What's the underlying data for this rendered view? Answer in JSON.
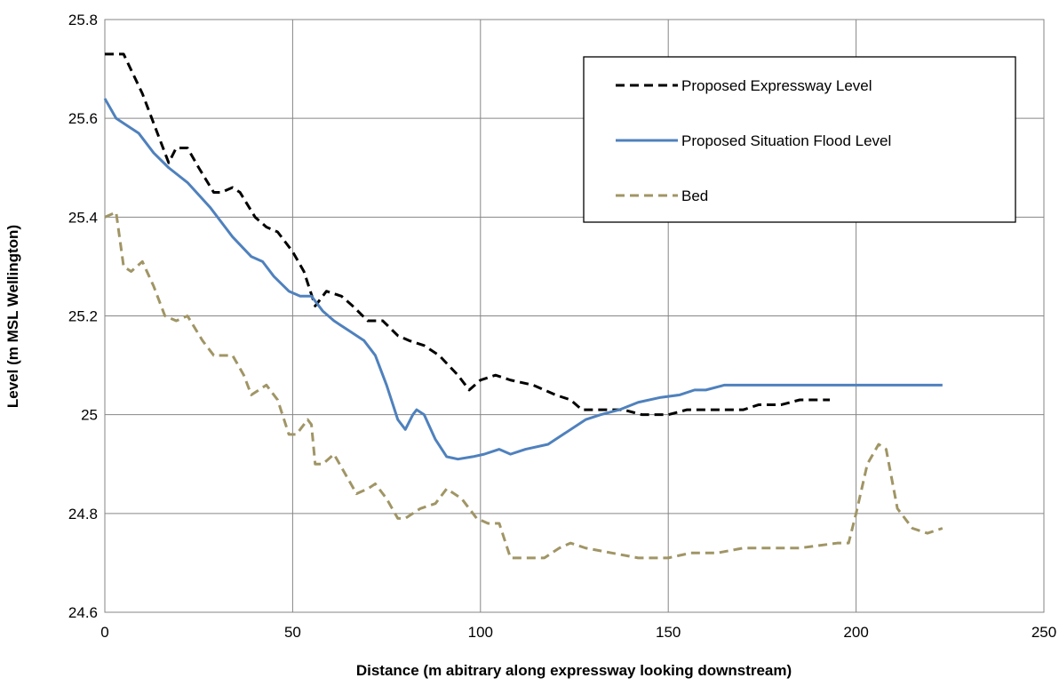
{
  "chart_data": {
    "type": "line",
    "x_label": "Distance (m abitrary along expressway looking downstream)",
    "y_label": "Level (m MSL Wellington)",
    "xlim": [
      0,
      250
    ],
    "xticks": [
      0,
      50,
      100,
      150,
      200,
      250
    ],
    "ylim": [
      24.6,
      25.8
    ],
    "yticks": [
      24.6,
      24.8,
      25,
      25.2,
      25.4,
      25.6,
      25.8
    ],
    "grid": true,
    "legend": "upper right",
    "series": [
      {
        "name": "Proposed Expressway Level",
        "color": "#000000",
        "dashed": true,
        "x": [
          0,
          5,
          10,
          15,
          17,
          19,
          22,
          25,
          29,
          31,
          34,
          36,
          40,
          43,
          46,
          50,
          53,
          56,
          59,
          63,
          66,
          70,
          74,
          78,
          81,
          85,
          89,
          94,
          97,
          100,
          104,
          108,
          114,
          120,
          124,
          127,
          133,
          138,
          143,
          150,
          155,
          170,
          174,
          180,
          185,
          193
        ],
        "values": [
          25.73,
          25.73,
          25.65,
          25.55,
          25.51,
          25.54,
          25.54,
          25.5,
          25.45,
          25.45,
          25.46,
          25.45,
          25.4,
          25.38,
          25.37,
          25.33,
          25.29,
          25.22,
          25.25,
          25.24,
          25.22,
          25.19,
          25.19,
          25.16,
          25.15,
          25.14,
          25.12,
          25.08,
          25.05,
          25.07,
          25.08,
          25.07,
          25.06,
          25.04,
          25.03,
          25.01,
          25.01,
          25.01,
          25.0,
          25.0,
          25.01,
          25.01,
          25.02,
          25.02,
          25.03,
          25.03
        ]
      },
      {
        "name": "Proposed Situation Flood Level",
        "color": "#4f81bd",
        "dashed": false,
        "x": [
          0,
          3,
          5,
          9,
          13,
          17,
          22,
          28,
          34,
          39,
          42,
          45,
          49,
          52,
          55,
          58,
          61,
          65,
          69,
          72,
          75,
          78,
          80,
          82,
          83,
          85,
          88,
          91,
          94,
          98,
          101,
          105,
          108,
          112,
          118,
          122,
          128,
          132,
          137,
          142,
          148,
          153,
          157,
          160,
          165,
          180,
          200,
          223
        ],
        "values": [
          25.64,
          25.6,
          25.59,
          25.57,
          25.53,
          25.5,
          25.47,
          25.42,
          25.36,
          25.32,
          25.31,
          25.28,
          25.25,
          25.24,
          25.24,
          25.21,
          25.19,
          25.17,
          25.15,
          25.12,
          25.06,
          24.99,
          24.97,
          25.0,
          25.01,
          25.0,
          24.95,
          24.915,
          24.91,
          24.915,
          24.92,
          24.93,
          24.92,
          24.93,
          24.94,
          24.96,
          24.99,
          25.0,
          25.01,
          25.025,
          25.035,
          25.04,
          25.05,
          25.05,
          25.06,
          25.06,
          25.06,
          25.06
        ]
      },
      {
        "name": "Bed",
        "color": "#a09565",
        "dashed": true,
        "x": [
          0,
          3,
          5,
          7,
          10,
          13,
          16,
          19,
          22,
          26,
          29,
          31,
          34,
          37,
          39,
          41,
          43,
          46,
          49,
          51,
          54,
          55,
          56,
          58,
          61,
          64,
          67,
          70,
          72,
          75,
          78,
          80,
          84,
          88,
          91,
          95,
          99,
          102,
          105,
          108,
          112,
          117,
          121,
          124,
          128,
          135,
          142,
          150,
          156,
          163,
          170,
          185,
          195,
          198,
          200,
          203,
          206,
          208,
          211,
          215,
          219,
          223
        ],
        "values": [
          25.4,
          25.41,
          25.3,
          25.29,
          25.31,
          25.26,
          25.2,
          25.19,
          25.2,
          25.15,
          25.12,
          25.12,
          25.12,
          25.08,
          25.04,
          25.05,
          25.06,
          25.03,
          24.96,
          24.96,
          24.99,
          24.98,
          24.9,
          24.9,
          24.92,
          24.88,
          24.84,
          24.85,
          24.86,
          24.83,
          24.79,
          24.79,
          24.81,
          24.82,
          24.85,
          24.83,
          24.79,
          24.78,
          24.78,
          24.71,
          24.71,
          24.71,
          24.73,
          24.74,
          24.73,
          24.72,
          24.71,
          24.71,
          24.72,
          24.72,
          24.73,
          24.73,
          24.74,
          24.74,
          24.8,
          24.9,
          24.94,
          24.93,
          24.81,
          24.77,
          24.76,
          24.77
        ]
      }
    ]
  }
}
